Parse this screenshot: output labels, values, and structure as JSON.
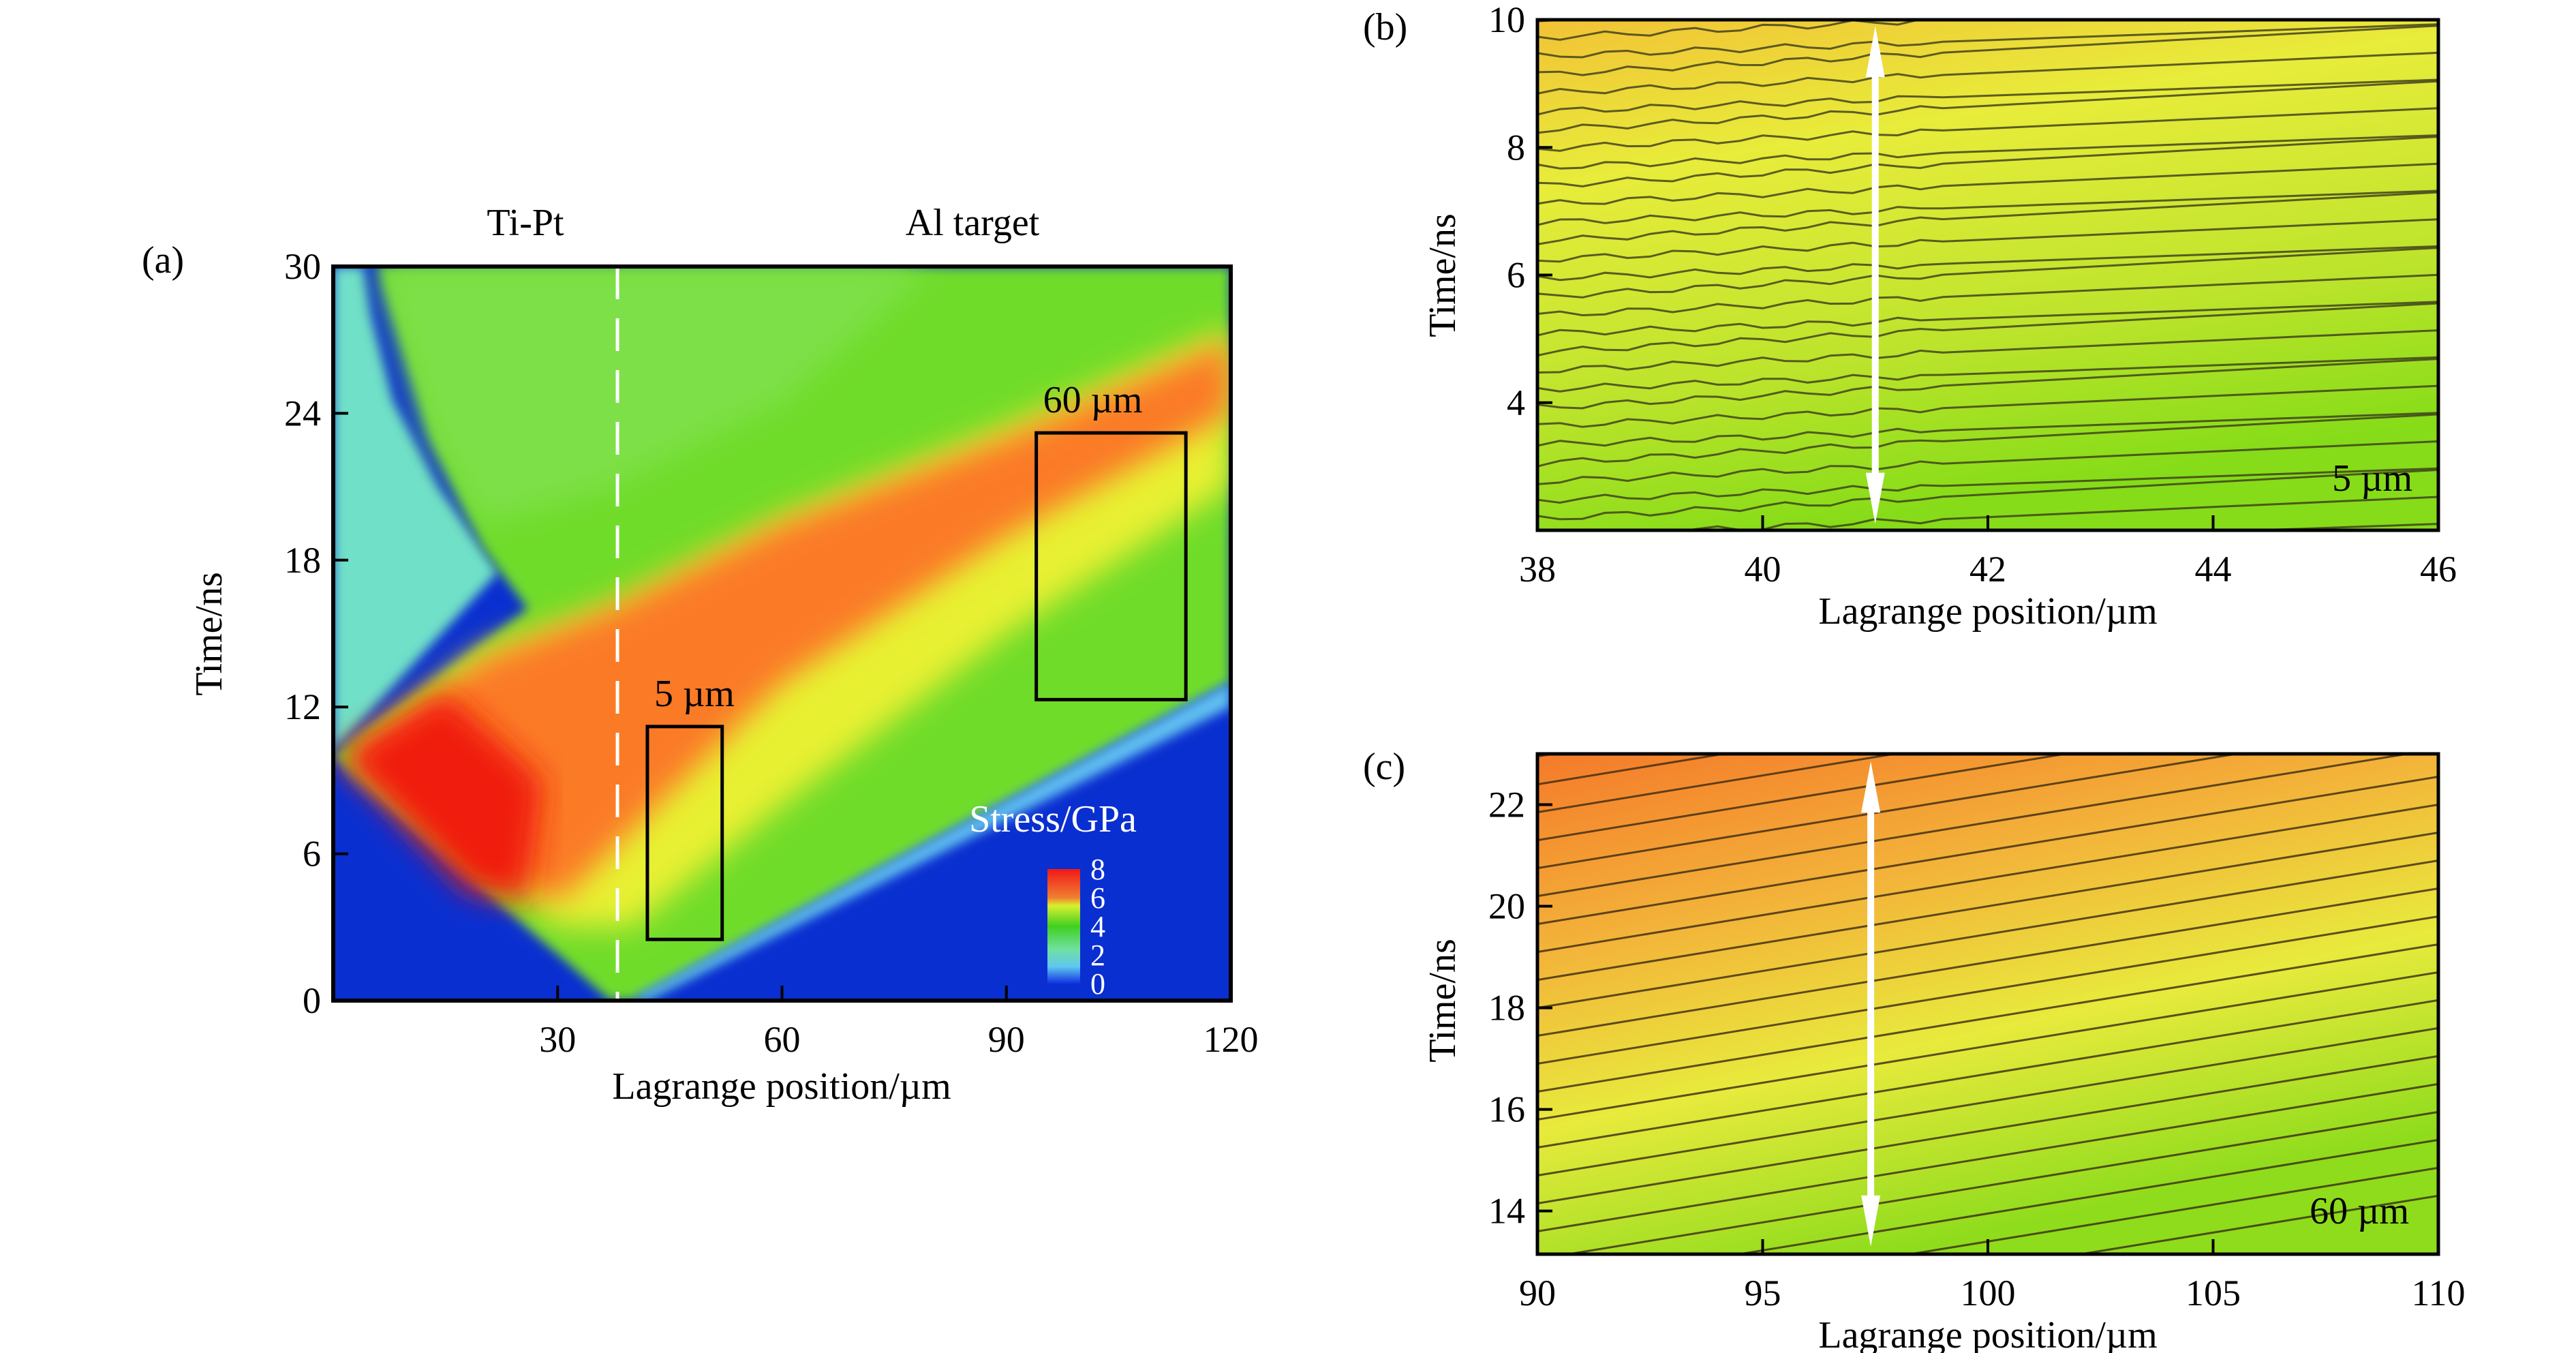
{
  "chart_data": [
    {
      "type": "heatmap",
      "panel_label": "(a)",
      "xlabel": "Lagrange position/µm",
      "ylabel": "Time/ns",
      "xlim": [
        0,
        120
      ],
      "ylim": [
        0,
        30
      ],
      "xticks": [
        "30",
        "60",
        "90",
        "120"
      ],
      "yticks": [
        "0",
        "6",
        "12",
        "18",
        "24",
        "30"
      ],
      "region_labels": [
        "Ti-Pt",
        "Al target"
      ],
      "interface_position": 38,
      "annotations": [
        {
          "text": "5 µm",
          "box_x": [
            42,
            52
          ],
          "box_y": [
            2.5,
            11.2
          ]
        },
        {
          "text": "60 µm",
          "box_x": [
            94,
            114
          ],
          "box_y": [
            12.3,
            23.2
          ]
        }
      ],
      "colorbar": {
        "title": "Stress/GPa",
        "ticks": [
          "8",
          "6",
          "4",
          "2",
          "0"
        ],
        "range": [
          0,
          8
        ]
      },
      "colors": {
        "low": "#0a2fd0",
        "mid": "#6fdc2a",
        "high": "#f01a10",
        "cyan": "#6fe0c8",
        "yellow": "#e8f030",
        "orange": "#fb7a25"
      }
    },
    {
      "type": "heatmap",
      "panel_label": "(b)",
      "xlabel": "Lagrange position/µm",
      "ylabel": "Time/ns",
      "xlim": [
        38,
        46
      ],
      "ylim": [
        2,
        10
      ],
      "xticks": [
        "38",
        "40",
        "42",
        "44",
        "46"
      ],
      "yticks": [
        "4",
        "6",
        "8",
        "10"
      ],
      "annotation": "5 µm",
      "arrow_x": 41,
      "contour_lines": true
    },
    {
      "type": "heatmap",
      "panel_label": "(c)",
      "xlabel": "Lagrange position/µm",
      "ylabel": "Time/ns",
      "xlim": [
        90,
        110
      ],
      "ylim": [
        13.15,
        23
      ],
      "xticks": [
        "90",
        "95",
        "100",
        "105",
        "110"
      ],
      "yticks": [
        "14",
        "16",
        "18",
        "20",
        "22"
      ],
      "annotation": "60 µm",
      "arrow_x": 97.4,
      "contour_lines": true
    }
  ]
}
